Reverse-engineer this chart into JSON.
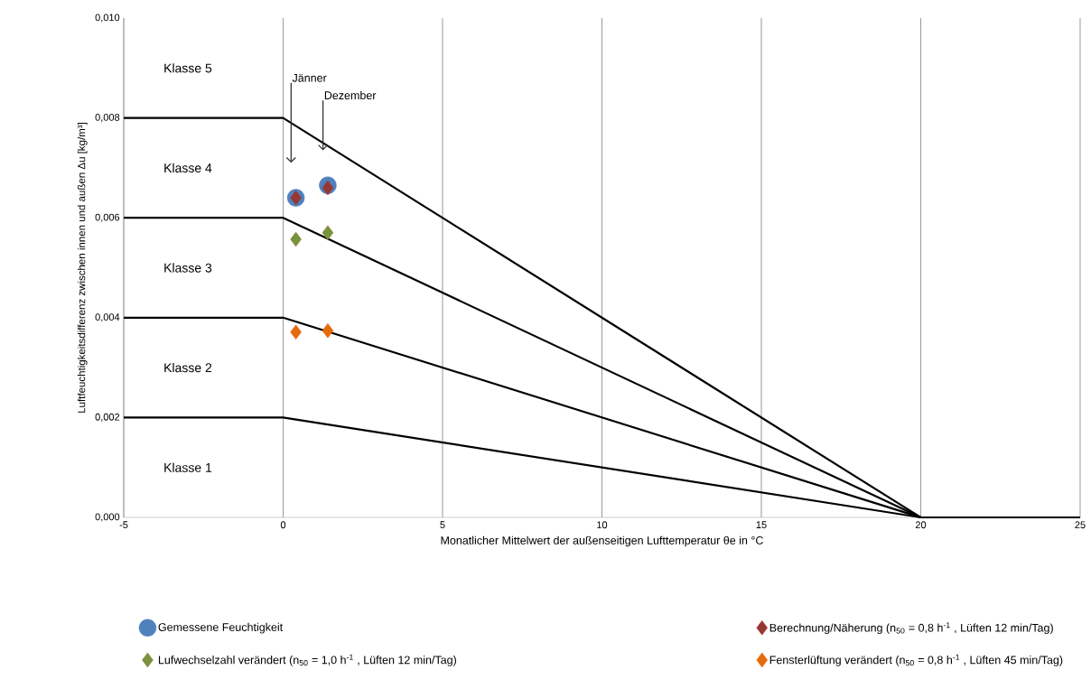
{
  "chart_data": {
    "type": "line",
    "xlabel": "Monatlicher Mittelwert der außenseitigen Lufttemperatur θe in °C",
    "ylabel": "Luftfeuchtigkeitsdifferenz zwischen innen und außen Δu [kg/m³]",
    "xlim": [
      -5,
      25
    ],
    "ylim": [
      0,
      0.01
    ],
    "xticks": [
      -5,
      0,
      5,
      10,
      15,
      20,
      25
    ],
    "yticks": [
      {
        "value": 0,
        "label": "0,000"
      },
      {
        "value": 0.002,
        "label": "0,002"
      },
      {
        "value": 0.004,
        "label": "0,004"
      },
      {
        "value": 0.006,
        "label": "0,006"
      },
      {
        "value": 0.008,
        "label": "0,008"
      },
      {
        "value": 0.01,
        "label": "0,010"
      }
    ],
    "grid": "x",
    "legend": "bottom",
    "annotations": [
      "Klasse 5",
      "Klasse 4",
      "Klasse 3",
      "Klasse 2",
      "Klasse 1",
      "Jänner",
      "Dezember"
    ],
    "series": [
      {
        "color": "#000000",
        "marker": "none",
        "x": [
          -5,
          0,
          20,
          25
        ],
        "values": [
          0.002,
          0.002,
          0,
          0
        ]
      },
      {
        "color": "#000000",
        "marker": "none",
        "x": [
          -5,
          0,
          20,
          25
        ],
        "values": [
          0.004,
          0.004,
          0,
          0
        ]
      },
      {
        "color": "#000000",
        "marker": "none",
        "x": [
          -5,
          0,
          20,
          25
        ],
        "values": [
          0.006,
          0.006,
          0,
          0
        ]
      },
      {
        "color": "#000000",
        "marker": "none",
        "x": [
          -5,
          0,
          20,
          25
        ],
        "values": [
          0.008,
          0.008,
          0,
          0
        ]
      },
      {
        "type": "scatter",
        "name": "Gemessene Feuchtigkeit",
        "color": "#4f81bd",
        "marker": "circle",
        "x": [
          0.4,
          1.4
        ],
        "values": [
          0.0064,
          0.00665
        ]
      },
      {
        "type": "scatter",
        "name": "Berechnung/Näherung (n$_{50}$ = 0,8 h$^{-1}$ , Lüften 12 min/Tag)",
        "color": "#953735",
        "marker": "diamond",
        "x": [
          0.4,
          1.4
        ],
        "values": [
          0.0064,
          0.0066
        ]
      },
      {
        "type": "scatter",
        "name": "Lufwechselzahl verändert (n$_{50}$ = 1,0 h$^{-1}$ , Lüften 12 min/Tag)",
        "color": "#77933c",
        "marker": "diamond",
        "x": [
          0.4,
          1.4
        ],
        "values": [
          0.00557,
          0.0057
        ]
      },
      {
        "type": "scatter",
        "name": "Fensterlüftung verändert (n$_{50}$ = 0,8 h$^{-1}$ , Lüften 45 min/Tag)",
        "color": "#e46c0a",
        "marker": "diamond",
        "x": [
          0.4,
          1.4
        ],
        "values": [
          0.00371,
          0.00374
        ]
      }
    ]
  }
}
